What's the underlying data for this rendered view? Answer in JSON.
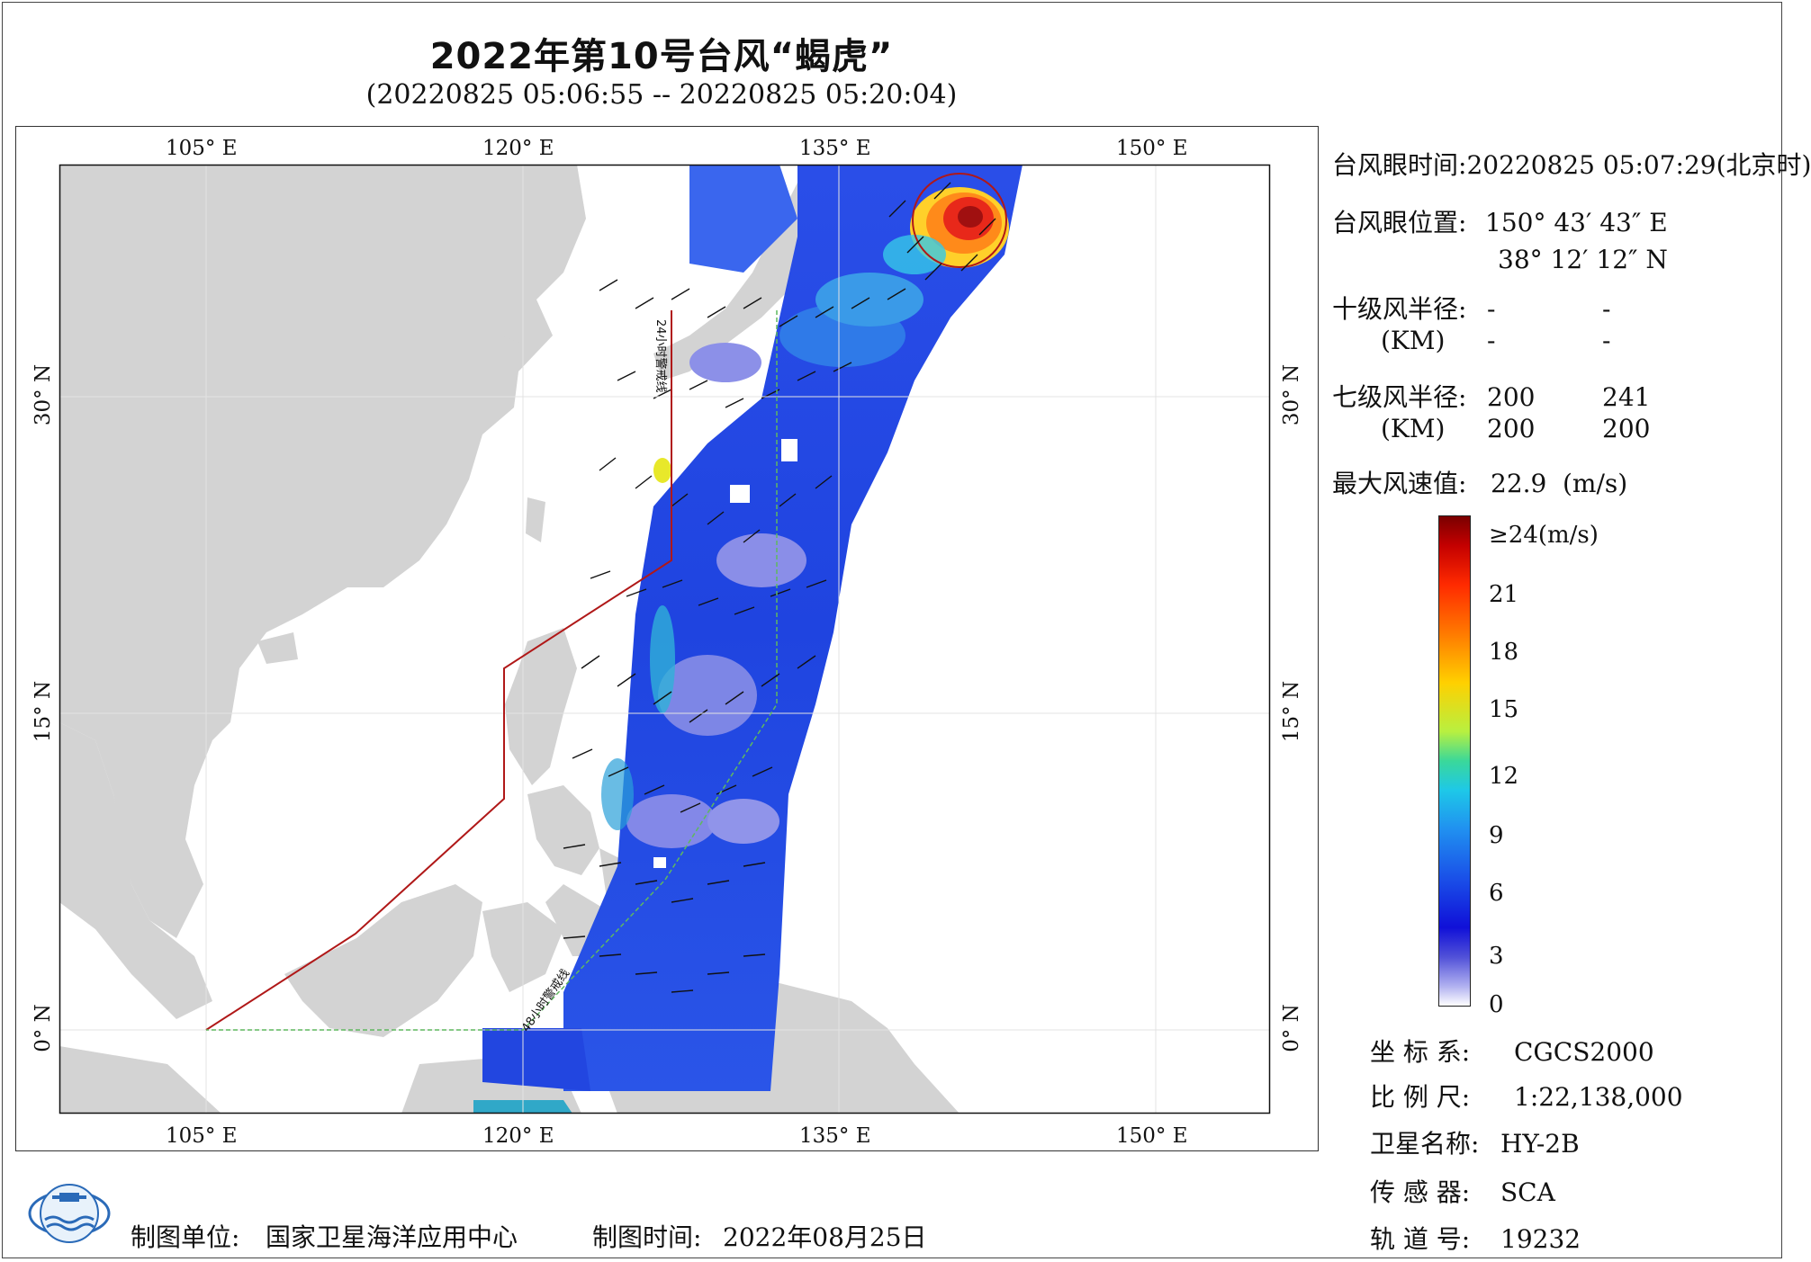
{
  "header": {
    "title": "2022年第10号台风“蝎虎”",
    "time_range": "(20220825 05:06:55 -- 20220825 05:20:04)"
  },
  "map": {
    "lon_ticks_top": [
      "105° E",
      "120° E",
      "135° E",
      "150° E"
    ],
    "lon_ticks_bottom": [
      "105° E",
      "120° E",
      "135° E",
      "150° E"
    ],
    "lat_ticks_left": [
      "30° N",
      "15° N",
      "0° N"
    ],
    "lat_ticks_right": [
      "30° N",
      "15° N",
      "0° N"
    ],
    "warning_24h_label": "24小时警戒线",
    "warning_48h_label": "48小时警戒线",
    "colors": {
      "land": "#d3d3d3",
      "ocean": "#ffffff",
      "warning_24h": "#b01818",
      "warning_48h": "#5fb85f",
      "grid": "#e3e3e3"
    }
  },
  "info": {
    "eye_time_label": "台风眼时间:",
    "eye_time_value": "20220825 05:07:29(北京时)",
    "eye_pos_label": "台风眼位置:",
    "eye_lon": "150° 43′ 43″ E",
    "eye_lat": "38° 12′ 12″ N",
    "r10_label": "十级风半径:",
    "r10_unit": "(KM)",
    "r10_values": [
      "-",
      "-",
      "-",
      "-"
    ],
    "r7_label": "七级风半径:",
    "r7_unit": "(KM)",
    "r7_values": [
      "200",
      "241",
      "200",
      "200"
    ],
    "max_wind_label": "最大风速值:",
    "max_wind_value": "22.9",
    "max_wind_unit": "(m/s)"
  },
  "colorbar": {
    "top_label": "≥24(m/s)",
    "ticks": [
      "21",
      "18",
      "15",
      "12",
      "9",
      "6",
      "3",
      "0"
    ]
  },
  "metadata": {
    "coord_label": "坐 标 系:",
    "coord_value": "CGCS2000",
    "scale_label": "比 例 尺:",
    "scale_value": "1:22,138,000",
    "satellite_label": "卫星名称:",
    "satellite_value": "HY-2B",
    "sensor_label": "传 感 器:",
    "sensor_value": "SCA",
    "orbit_label": "轨 道 号:",
    "orbit_value": "19232"
  },
  "footer": {
    "unit_label": "制图单位:",
    "unit_value": "国家卫星海洋应用中心",
    "date_label": "制图时间:",
    "date_value": "2022年08月25日"
  }
}
